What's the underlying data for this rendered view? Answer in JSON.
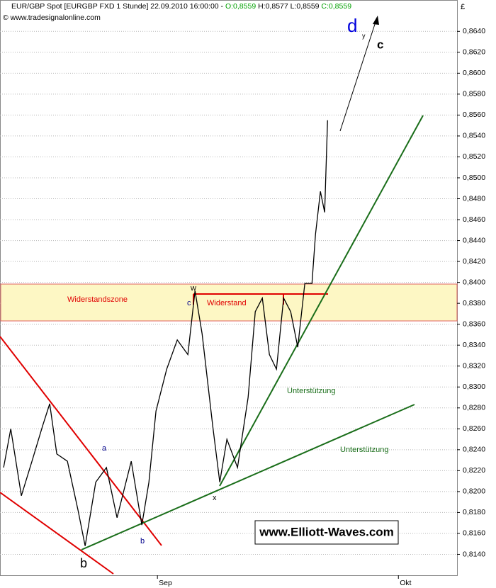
{
  "header": {
    "instrument": "EUR/GBP Spot [EURGBP FXD  1 Stunde] 22.09.2010 16:00:00 -",
    "open": "O:0,8559",
    "high_low": "H:0,8577 L:0,8559",
    "close": "C:0,8559",
    "source": "© www.tradesignalonline.com"
  },
  "chart_data": {
    "type": "line",
    "currency": "£",
    "x": [
      -19.15,
      -18.26,
      -16.94,
      -15.62,
      -14.29,
      -13.41,
      -12.53,
      -11.21,
      -9.88,
      -9.0,
      -7.68,
      -6.35,
      -5.03,
      -3.26,
      -1.94,
      -1.06,
      -0.18,
      1.15,
      2.47,
      3.79,
      4.68,
      5.56,
      6.88,
      7.76,
      8.65,
      9.97,
      11.29,
      12.18,
      13.06,
      13.94,
      14.82,
      15.71,
      16.59,
      17.47,
      18.35,
      19.24,
      19.68,
      20.29,
      20.82,
      21.18
    ],
    "series": [
      {
        "name": "EUR/GBP",
        "color": "#000000",
        "values": [
          0.8223,
          0.826,
          0.8196,
          0.8229,
          0.8263,
          0.8284,
          0.8236,
          0.8229,
          0.8182,
          0.8148,
          0.8209,
          0.8223,
          0.8175,
          0.8229,
          0.8168,
          0.8209,
          0.8277,
          0.8317,
          0.8345,
          0.8331,
          0.8392,
          0.8351,
          0.8263,
          0.8209,
          0.825,
          0.8223,
          0.829,
          0.8372,
          0.8385,
          0.8331,
          0.8317,
          0.8385,
          0.8372,
          0.8338,
          0.8399,
          0.8399,
          0.8446,
          0.8487,
          0.8467,
          0.8555
        ]
      }
    ],
    "xlim": [
      -19.6,
      37.3
    ],
    "xticks": [
      {
        "value": 0,
        "label": "Sep"
      },
      {
        "value": 30,
        "label": "Okt"
      }
    ],
    "ylim": [
      0.812,
      0.867
    ],
    "yticks": [
      {
        "value": 0.814,
        "label": "0,8140"
      },
      {
        "value": 0.816,
        "label": "0,8160"
      },
      {
        "value": 0.818,
        "label": "0,8180"
      },
      {
        "value": 0.82,
        "label": "0,8200"
      },
      {
        "value": 0.822,
        "label": "0,8220"
      },
      {
        "value": 0.824,
        "label": "0,8240"
      },
      {
        "value": 0.826,
        "label": "0,8260"
      },
      {
        "value": 0.828,
        "label": "0,8280"
      },
      {
        "value": 0.83,
        "label": "0,8300"
      },
      {
        "value": 0.832,
        "label": "0,8320"
      },
      {
        "value": 0.834,
        "label": "0,8340"
      },
      {
        "value": 0.836,
        "label": "0,8360"
      },
      {
        "value": 0.838,
        "label": "0,8380"
      },
      {
        "value": 0.84,
        "label": "0,8400"
      },
      {
        "value": 0.842,
        "label": "0,8420"
      },
      {
        "value": 0.844,
        "label": "0,8440"
      },
      {
        "value": 0.846,
        "label": "0,8460"
      },
      {
        "value": 0.848,
        "label": "0,8480"
      },
      {
        "value": 0.85,
        "label": "0,8500"
      },
      {
        "value": 0.852,
        "label": "0,8520"
      },
      {
        "value": 0.854,
        "label": "0,8540"
      },
      {
        "value": 0.856,
        "label": "0,8560"
      },
      {
        "value": 0.858,
        "label": "0,8580"
      },
      {
        "value": 0.86,
        "label": "0,8600"
      },
      {
        "value": 0.862,
        "label": "0,8620"
      },
      {
        "value": 0.864,
        "label": "0,8640"
      }
    ],
    "grid": true,
    "annotations": [
      "Widerstandszone",
      "Widerstand",
      "Unterstützung",
      "Unterstützung",
      "a",
      "b",
      "b",
      "c",
      "w",
      "x",
      "d",
      "y",
      "c",
      "www.Elliott-Waves.com"
    ]
  }
}
